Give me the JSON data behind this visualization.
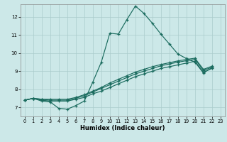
{
  "xlabel": "Humidex (Indice chaleur)",
  "bg_color": "#cce8e8",
  "grid_color_major": "#aacccc",
  "grid_color_minor": "#bbdddd",
  "line_color": "#1a6b5e",
  "xlim": [
    -0.5,
    23.5
  ],
  "ylim": [
    6.5,
    12.7
  ],
  "xticks": [
    0,
    1,
    2,
    3,
    4,
    5,
    6,
    7,
    8,
    9,
    10,
    11,
    12,
    13,
    14,
    15,
    16,
    17,
    18,
    19,
    20,
    21,
    22,
    23
  ],
  "yticks": [
    7,
    8,
    9,
    10,
    11,
    12
  ],
  "x_data": [
    0,
    1,
    2,
    3,
    4,
    5,
    6,
    7,
    8,
    9,
    10,
    11,
    12,
    13,
    14,
    15,
    16,
    17,
    18,
    19,
    20,
    21,
    22
  ],
  "series1": [
    7.4,
    7.5,
    7.35,
    7.3,
    6.95,
    6.9,
    7.1,
    7.35,
    8.4,
    9.5,
    11.1,
    11.05,
    11.85,
    12.6,
    12.2,
    11.65,
    11.05,
    10.5,
    9.95,
    9.7,
    9.5,
    8.9,
    9.2
  ],
  "series2": [
    7.4,
    7.5,
    7.4,
    7.35,
    7.35,
    7.35,
    7.45,
    7.55,
    7.75,
    7.9,
    8.1,
    8.3,
    8.5,
    8.7,
    8.85,
    9.0,
    9.15,
    9.25,
    9.35,
    9.45,
    9.55,
    8.95,
    9.15
  ],
  "series3": [
    7.4,
    7.5,
    7.45,
    7.4,
    7.4,
    7.4,
    7.5,
    7.65,
    7.85,
    8.05,
    8.25,
    8.45,
    8.65,
    8.85,
    9.0,
    9.15,
    9.3,
    9.4,
    9.5,
    9.58,
    9.65,
    9.05,
    9.22
  ],
  "series4": [
    7.4,
    7.5,
    7.45,
    7.45,
    7.45,
    7.45,
    7.55,
    7.7,
    7.9,
    8.1,
    8.35,
    8.55,
    8.75,
    8.95,
    9.1,
    9.25,
    9.37,
    9.47,
    9.57,
    9.65,
    9.72,
    9.1,
    9.28
  ]
}
